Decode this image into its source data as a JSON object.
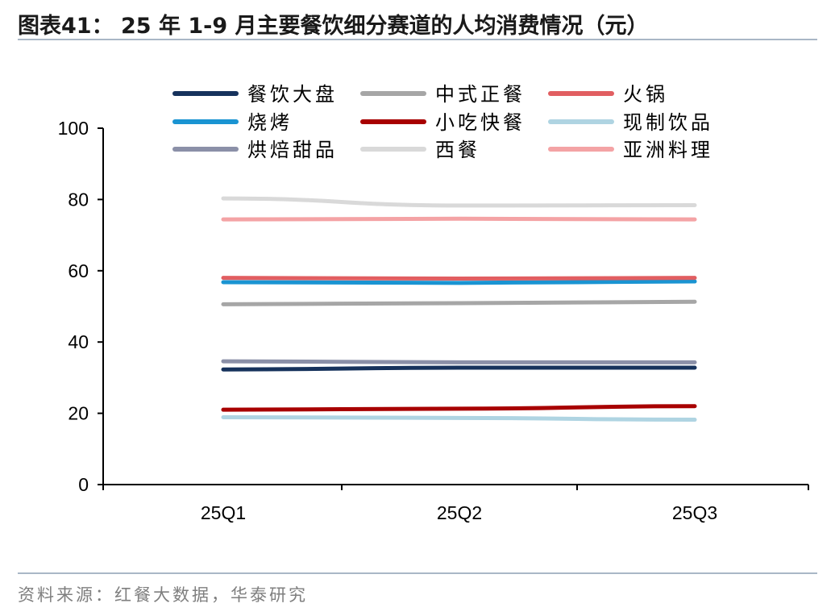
{
  "title": "图表41：  25 年  1-9 月主要餐饮细分赛道的人均消费情况（元）",
  "source": "资料来源：红餐大数据，华泰研究",
  "chart_data": {
    "type": "line",
    "categories": [
      "25Q1",
      "25Q2",
      "25Q3"
    ],
    "ylim": [
      0,
      100
    ],
    "yticks": [
      0,
      20,
      40,
      60,
      80,
      100
    ],
    "grid": false,
    "legend_position": "top",
    "series": [
      {
        "name": "餐饮大盘",
        "color": "#16325c",
        "values": [
          32.3,
          32.8,
          32.8
        ]
      },
      {
        "name": "中式正餐",
        "color": "#a6a6a6",
        "values": [
          50.6,
          50.9,
          51.3
        ]
      },
      {
        "name": "火锅",
        "color": "#e15e61",
        "values": [
          58.0,
          57.8,
          58.0
        ]
      },
      {
        "name": "烧烤",
        "color": "#1a94d2",
        "values": [
          56.8,
          56.6,
          57.0
        ]
      },
      {
        "name": "小吃快餐",
        "color": "#a80000",
        "values": [
          21.0,
          21.3,
          22.0
        ]
      },
      {
        "name": "现制饮品",
        "color": "#afd4e2",
        "values": [
          18.9,
          18.7,
          18.2
        ]
      },
      {
        "name": "烘焙甜品",
        "color": "#8b90a8",
        "values": [
          34.6,
          34.3,
          34.3
        ]
      },
      {
        "name": "西餐",
        "color": "#d9d9d9",
        "values": [
          80.3,
          78.3,
          78.4
        ]
      },
      {
        "name": "亚洲料理",
        "color": "#f4a3a5",
        "values": [
          74.4,
          74.6,
          74.4
        ]
      }
    ]
  }
}
